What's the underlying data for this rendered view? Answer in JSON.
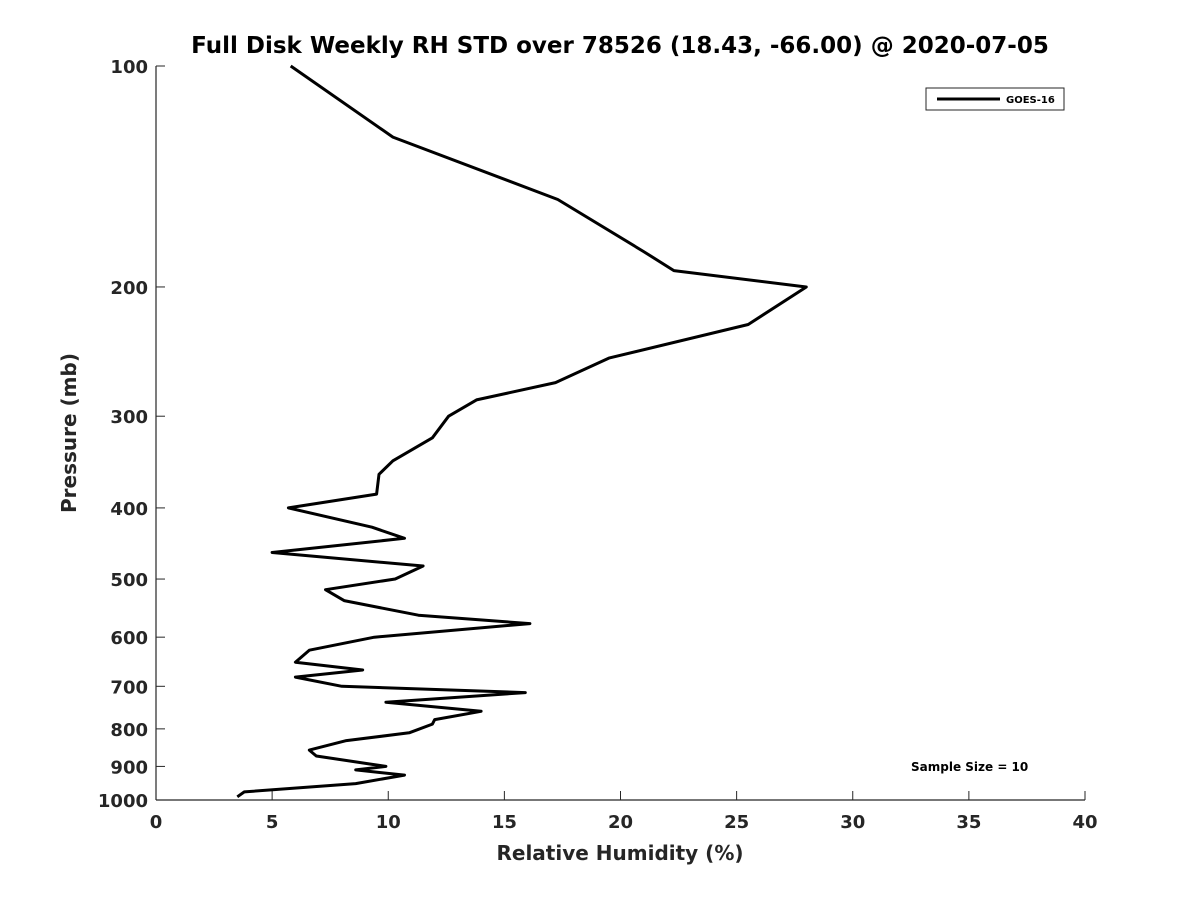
{
  "chart_data": {
    "type": "line",
    "title": "Full Disk Weekly RH STD over 78526 (18.43, -66.00) @ 2020-07-05",
    "xlabel": "Relative Humidity (%)",
    "ylabel": "Pressure (mb)",
    "xlim": [
      0,
      40
    ],
    "ylim": [
      100,
      1000
    ],
    "y_scale": "log",
    "y_reversed": true,
    "grid": false,
    "legend_position": "top-right",
    "x_ticks": [
      0,
      5,
      10,
      15,
      20,
      25,
      30,
      35,
      40
    ],
    "y_ticks": [
      100,
      200,
      300,
      400,
      500,
      600,
      700,
      800,
      900,
      1000
    ],
    "annotation": "Sample Size = 10",
    "series": [
      {
        "name": "GOES-16",
        "color": "#000000",
        "points": [
          [
            5.8,
            100
          ],
          [
            10.2,
            125
          ],
          [
            17.3,
            152
          ],
          [
            21.0,
            179
          ],
          [
            22.3,
            190
          ],
          [
            28.0,
            200
          ],
          [
            25.5,
            225
          ],
          [
            19.5,
            250
          ],
          [
            17.2,
            270
          ],
          [
            13.8,
            285
          ],
          [
            12.6,
            300
          ],
          [
            11.9,
            321
          ],
          [
            10.2,
            345
          ],
          [
            9.6,
            360
          ],
          [
            9.5,
            383
          ],
          [
            5.7,
            400
          ],
          [
            9.3,
            425
          ],
          [
            10.7,
            440
          ],
          [
            5.0,
            460
          ],
          [
            11.5,
            480
          ],
          [
            10.3,
            500
          ],
          [
            7.3,
            517
          ],
          [
            8.1,
            535
          ],
          [
            11.3,
            560
          ],
          [
            16.1,
            575
          ],
          [
            9.4,
            600
          ],
          [
            6.6,
            625
          ],
          [
            6.0,
            649
          ],
          [
            8.9,
            665
          ],
          [
            6.0,
            680
          ],
          [
            8.0,
            700
          ],
          [
            15.9,
            714
          ],
          [
            9.9,
            736
          ],
          [
            14.0,
            757
          ],
          [
            12.0,
            777
          ],
          [
            11.9,
            788
          ],
          [
            10.9,
            810
          ],
          [
            8.2,
            830
          ],
          [
            6.6,
            855
          ],
          [
            6.9,
            871
          ],
          [
            9.9,
            900
          ],
          [
            8.6,
            910
          ],
          [
            10.7,
            925
          ],
          [
            8.6,
            950
          ],
          [
            3.8,
            975
          ],
          [
            3.5,
            990
          ]
        ]
      }
    ]
  }
}
